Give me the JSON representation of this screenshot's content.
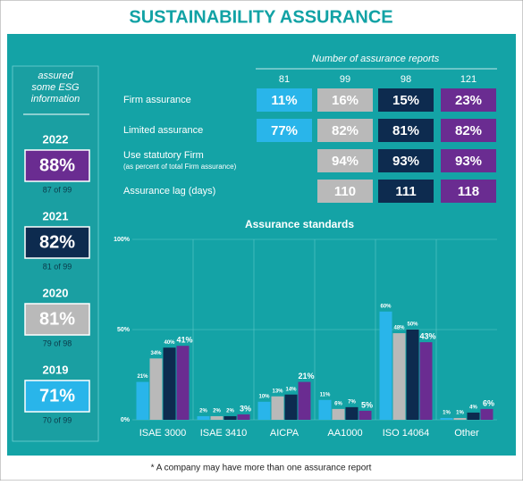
{
  "header": {
    "title": "SUSTAINABILITY ASSURANCE"
  },
  "sidebar": {
    "heading": "assured some ESG information",
    "items": [
      {
        "year": "2022",
        "value": "88%",
        "detail": "87 of 99",
        "color": "#6a2c91"
      },
      {
        "year": "2021",
        "value": "82%",
        "detail": "81 of 99",
        "color": "#0d2b4f"
      },
      {
        "year": "2020",
        "value": "81%",
        "detail": "79 of 98",
        "color": "#b9b9b9"
      },
      {
        "year": "2019",
        "value": "71%",
        "detail": "70 of 99",
        "color": "#29b5ea"
      }
    ]
  },
  "table": {
    "heading": "Number of assurance reports",
    "columns": [
      "81",
      "99",
      "98",
      "121"
    ],
    "colors": [
      "#29b5ea",
      "#b9b9b9",
      "#0d2b4f",
      "#6a2c91"
    ],
    "rows": [
      {
        "label": "Firm assurance",
        "cells": [
          "11%",
          "16%",
          "15%",
          "23%"
        ]
      },
      {
        "label": "Limited assurance",
        "cells": [
          "77%",
          "82%",
          "81%",
          "82%"
        ]
      },
      {
        "label": "Use statutory Firm",
        "sublabel": "(as percent of total Firm assurance)",
        "cells": [
          null,
          "94%",
          "93%",
          "93%"
        ]
      },
      {
        "label": "Assurance lag (days)",
        "cells": [
          null,
          "110",
          "111",
          "118"
        ]
      }
    ]
  },
  "chart_data": {
    "type": "bar",
    "title": "Assurance standards",
    "categories": [
      "ISAE 3000",
      "ISAE 3410",
      "AICPA",
      "AA1000",
      "ISO 14064",
      "Other"
    ],
    "series": [
      {
        "color": "#29b5ea",
        "values": [
          21,
          2,
          10,
          11,
          60,
          1
        ],
        "value_labels": [
          "21%",
          "2%",
          "10%",
          "11%",
          "60%",
          "1%"
        ]
      },
      {
        "color": "#b9b9b9",
        "values": [
          34,
          2,
          13,
          6,
          48,
          1
        ],
        "value_labels": [
          "34%",
          "2%",
          "13%",
          "6%",
          "48%",
          "1%"
        ]
      },
      {
        "color": "#0d2b4f",
        "values": [
          40,
          2,
          14,
          7,
          50,
          4
        ],
        "value_labels": [
          "40%",
          "2%",
          "14%",
          "7%",
          "50%",
          "4%"
        ]
      },
      {
        "color": "#6a2c91",
        "values": [
          41,
          3,
          21,
          5,
          43,
          6
        ],
        "value_labels": [
          "41%",
          "3%",
          "21%",
          "5%",
          "43%",
          "6%"
        ]
      }
    ],
    "ylim": [
      0,
      100
    ],
    "yticks": [
      {
        "value": 0,
        "label": "0%"
      },
      {
        "value": 50,
        "label": "50%"
      },
      {
        "value": 100,
        "label": "100%"
      }
    ],
    "grid": true
  },
  "footnote": "* A company may have more than one assurance report"
}
